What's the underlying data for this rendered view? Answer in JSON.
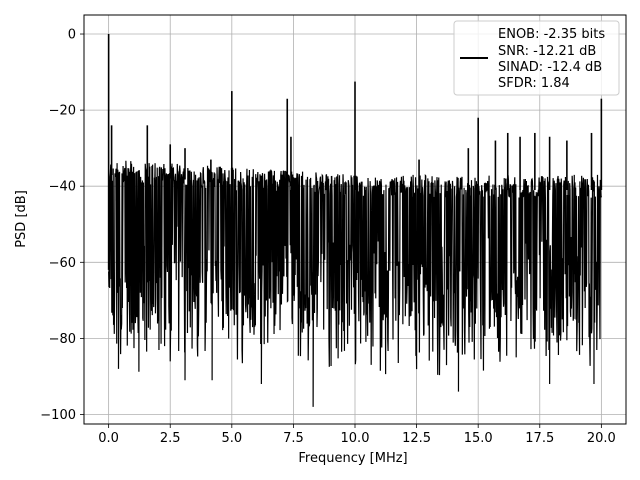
{
  "chart_data": {
    "type": "line",
    "title": "",
    "xlabel": "Frequency [MHz]",
    "ylabel": "PSD [dB]",
    "xlim": [
      -1.0,
      21.0
    ],
    "ylim": [
      -102.5,
      5.0
    ],
    "xticks": [
      0.0,
      2.5,
      5.0,
      7.5,
      10.0,
      12.5,
      15.0,
      17.5,
      20.0
    ],
    "xtick_labels": [
      "0.0",
      "2.5",
      "5.0",
      "7.5",
      "10.0",
      "12.5",
      "15.0",
      "17.5",
      "20.0"
    ],
    "yticks": [
      0,
      -20,
      -40,
      -60,
      -80,
      -100
    ],
    "ytick_labels": [
      "0",
      "−20",
      "−40",
      "−60",
      "−80",
      "−100"
    ],
    "grid": true,
    "legend_position": "upper right",
    "legend": [
      "ENOB: -2.35 bits",
      "SNR: -12.21 dB",
      "SINAD: -12.4 dB",
      "SFDR: 1.84"
    ],
    "line_color": "#000000",
    "noise_floor": {
      "upper_envelope": [
        [
          0.0,
          -33
        ],
        [
          5.0,
          -35
        ],
        [
          10.0,
          -37
        ],
        [
          15.0,
          -37
        ],
        [
          20.0,
          -37
        ]
      ],
      "typical_range": [
        -80,
        -35
      ],
      "deepest_dips": [
        [
          0.4,
          -88
        ],
        [
          3.1,
          -91
        ],
        [
          4.2,
          -91
        ],
        [
          6.2,
          -92
        ],
        [
          8.3,
          -98
        ],
        [
          14.2,
          -94
        ],
        [
          17.9,
          -92
        ],
        [
          19.7,
          -92
        ]
      ]
    },
    "spurs": [
      {
        "x": 0.0,
        "y": 0.0
      },
      {
        "x": 0.12,
        "y": -24
      },
      {
        "x": 1.57,
        "y": -24
      },
      {
        "x": 2.5,
        "y": -29
      },
      {
        "x": 3.1,
        "y": -30
      },
      {
        "x": 4.15,
        "y": -33
      },
      {
        "x": 5.0,
        "y": -15
      },
      {
        "x": 7.25,
        "y": -17
      },
      {
        "x": 7.4,
        "y": -27
      },
      {
        "x": 10.0,
        "y": -12.5
      },
      {
        "x": 12.6,
        "y": -33
      },
      {
        "x": 14.6,
        "y": -30
      },
      {
        "x": 15.0,
        "y": -22
      },
      {
        "x": 15.7,
        "y": -28
      },
      {
        "x": 16.2,
        "y": -26
      },
      {
        "x": 16.7,
        "y": -27
      },
      {
        "x": 17.3,
        "y": -26
      },
      {
        "x": 17.9,
        "y": -27
      },
      {
        "x": 18.6,
        "y": -28
      },
      {
        "x": 19.6,
        "y": -26
      },
      {
        "x": 20.0,
        "y": -17
      }
    ]
  }
}
